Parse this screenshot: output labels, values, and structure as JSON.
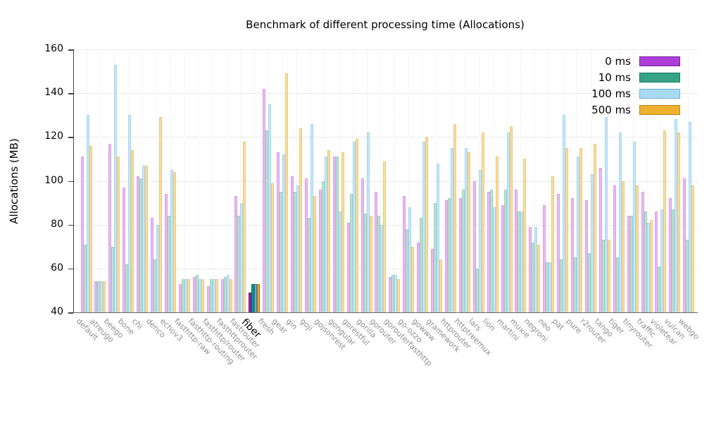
{
  "title": "Benchmark of different processing time (Allocations)",
  "y_axis": {
    "label": "Allocations (MB)",
    "ticks": [
      40,
      60,
      80,
      100,
      120,
      140,
      160
    ]
  },
  "legend": {
    "position": "top-right",
    "labels": [
      "0 ms",
      "10 ms",
      "100 ms",
      "500 ms"
    ]
  },
  "chart_data": {
    "type": "bar",
    "title": "Benchmark of different processing time (Allocations)",
    "xlabel": "",
    "ylabel": "Allocations (MB)",
    "ylim": [
      40,
      160
    ],
    "grid": true,
    "legend_position": "top-right",
    "highlight_category": "fiber",
    "categories": [
      "default",
      "atreugo",
      "beego",
      "bone",
      "chi",
      "denco",
      "echov3",
      "fasthttp-raw",
      "fasthttp-routing",
      "fasthttp/router",
      "fasthttprouter",
      "fastrouter",
      "fiber",
      "fresh",
      "gear",
      "gin",
      "goji",
      "gojsonrest",
      "gongular",
      "gorestful",
      "gorilla",
      "gorouter",
      "gorouterfasthttp",
      "go-ozzo",
      "gowww",
      "gramework",
      "httprouter",
      "httptreemux",
      "lars",
      "lion",
      "martini",
      "muxie",
      "negroni",
      "neo",
      "pat",
      "pure",
      "r2router",
      "tango",
      "tiger",
      "tinyrouter",
      "traffic",
      "violetear",
      "vulcan",
      "webgo"
    ],
    "series": [
      {
        "name": "0 ms",
        "color": "#ae3ed8",
        "border": "#7a1fa2",
        "pale_fill": "#e8bcee",
        "pale_border": "#d9a0e4",
        "highlight_fill": "#9c27c4",
        "highlight_border": "#6a1287",
        "values": [
          111,
          54,
          117,
          97,
          102,
          83,
          94,
          53,
          56,
          52,
          55,
          93,
          49,
          142,
          113,
          102,
          101,
          96,
          111,
          81,
          101,
          95,
          56,
          93,
          72,
          69,
          91,
          92,
          100,
          95,
          89,
          96,
          79,
          89,
          94,
          92,
          91,
          106,
          98,
          84,
          95,
          86,
          92,
          101
        ]
      },
      {
        "name": "10 ms",
        "color": "#36a385",
        "border": "#1e7a5e",
        "pale_fill": "#bce2d4",
        "pale_border": "#9ad2bf",
        "highlight_fill": "#169a7c",
        "highlight_border": "#0c6b55",
        "values": [
          71,
          54,
          70,
          62,
          101,
          64,
          84,
          55,
          57,
          55,
          56,
          84,
          53,
          123,
          95,
          95,
          83,
          100,
          111,
          94,
          85,
          84,
          57,
          78,
          83,
          90,
          92,
          96,
          60,
          96,
          96,
          86,
          72,
          63,
          64,
          65,
          67,
          73,
          65,
          84,
          86,
          61,
          87,
          73
        ]
      },
      {
        "name": "100 ms",
        "color": "#a8daf4",
        "border": "#70b4dd",
        "pale_fill": "#c9e7f8",
        "pale_border": "#a5d5ef",
        "highlight_fill": "#57aee0",
        "highlight_border": "#2d7fb5",
        "values": [
          130,
          54,
          153,
          130,
          107,
          80,
          105,
          55,
          55,
          55,
          57,
          90,
          53,
          135,
          112,
          98,
          126,
          111,
          86,
          118,
          122,
          80,
          57,
          88,
          118,
          108,
          115,
          115,
          105,
          88,
          122,
          86,
          79,
          63,
          130,
          111,
          103,
          129,
          122,
          118,
          81,
          87,
          128,
          127
        ]
      },
      {
        "name": "500 ms",
        "color": "#eeb02e",
        "border": "#bf861b",
        "pale_fill": "#f7dda4",
        "pale_border": "#eec878",
        "highlight_fill": "#e9a21a",
        "highlight_border": "#b67708",
        "values": [
          116,
          54,
          111,
          114,
          107,
          129,
          104,
          55,
          55,
          55,
          55,
          118,
          53,
          99,
          149,
          124,
          93,
          114,
          113,
          119,
          84,
          109,
          55,
          70,
          120,
          64,
          126,
          113,
          122,
          111,
          125,
          110,
          71,
          102,
          115,
          115,
          117,
          73,
          100,
          98,
          82,
          123,
          122,
          98
        ]
      }
    ]
  }
}
